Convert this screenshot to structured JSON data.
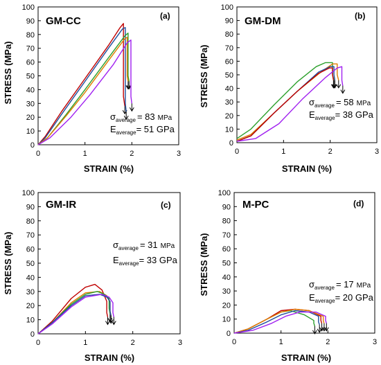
{
  "chart_data": [
    {
      "type": "line",
      "label": "GM-CC",
      "panel": "(a)",
      "xlabel": "STRAIN (%)",
      "ylabel": "STRESS (MPa)",
      "xlim": [
        0,
        3
      ],
      "ylim": [
        0,
        100
      ],
      "xticks": [
        0,
        1,
        2,
        3
      ],
      "yticks": [
        0,
        10,
        20,
        30,
        40,
        50,
        60,
        70,
        80,
        90,
        100
      ],
      "grid": false,
      "annotation": {
        "sigma_value": "= 83",
        "sigma_unit": "MPa",
        "e_value": "= 51 GPa"
      },
      "series": [
        {
          "color": "#c00000",
          "x": [
            0,
            0.15,
            0.5,
            1.0,
            1.5,
            1.75,
            1.82,
            1.82,
            1.85
          ],
          "y": [
            0,
            6,
            24,
            48,
            72,
            85,
            88,
            35,
            28
          ]
        },
        {
          "color": "#1f4e9c",
          "x": [
            0,
            0.15,
            0.5,
            1.0,
            1.5,
            1.8,
            1.86,
            1.86,
            1.88
          ],
          "y": [
            0,
            5,
            22,
            46,
            70,
            84,
            85,
            30,
            24
          ]
        },
        {
          "color": "#2ca02c",
          "x": [
            0,
            0.2,
            0.6,
            1.0,
            1.5,
            1.85,
            1.92,
            1.92,
            1.94
          ],
          "y": [
            0,
            5,
            22,
            40,
            63,
            79,
            81,
            50,
            46
          ]
        },
        {
          "color": "#e07b00",
          "x": [
            0,
            0.2,
            0.6,
            1.0,
            1.5,
            1.85,
            1.9,
            1.9,
            1.92
          ],
          "y": [
            0,
            5,
            21,
            38,
            61,
            77,
            78,
            50,
            46
          ]
        },
        {
          "color": "#a020f0",
          "x": [
            0,
            0.25,
            0.7,
            1.1,
            1.6,
            1.9,
            1.98,
            1.98,
            2.0
          ],
          "y": [
            0,
            5,
            20,
            36,
            58,
            74,
            76,
            35,
            30
          ]
        }
      ]
    },
    {
      "type": "line",
      "label": "GM-DM",
      "panel": "(b)",
      "xlabel": "STRAIN (%)",
      "ylabel": "STRESS (MPa)",
      "xlim": [
        0,
        3
      ],
      "ylim": [
        0,
        100
      ],
      "xticks": [
        0,
        1,
        2,
        3
      ],
      "yticks": [
        0,
        10,
        20,
        30,
        40,
        50,
        60,
        70,
        80,
        90,
        100
      ],
      "grid": false,
      "annotation": {
        "sigma_value": "= 58",
        "sigma_unit": "MPa",
        "e_value": "= 38 GPa"
      },
      "series": [
        {
          "color": "#2ca02c",
          "x": [
            0,
            0.3,
            0.8,
            1.3,
            1.7,
            1.9,
            2.05,
            2.05,
            2.08
          ],
          "y": [
            3,
            10,
            28,
            45,
            56,
            59,
            59,
            50,
            46
          ]
        },
        {
          "color": "#e07b00",
          "x": [
            0,
            0.3,
            0.8,
            1.3,
            1.8,
            2.05,
            2.15,
            2.15,
            2.18
          ],
          "y": [
            2,
            6,
            22,
            38,
            52,
            58,
            58,
            50,
            46
          ]
        },
        {
          "color": "#1f4e9c",
          "x": [
            0,
            0.3,
            0.8,
            1.3,
            1.75,
            2.0,
            2.08,
            2.08,
            2.1
          ],
          "y": [
            1,
            5,
            22,
            38,
            52,
            56,
            56,
            50,
            46
          ]
        },
        {
          "color": "#c00000",
          "x": [
            0,
            0.3,
            0.8,
            1.3,
            1.75,
            1.98,
            2.05,
            2.05,
            2.07
          ],
          "y": [
            1,
            5,
            22,
            38,
            51,
            55,
            55,
            50,
            46
          ]
        },
        {
          "color": "#a020f0",
          "x": [
            0,
            0.4,
            0.9,
            1.4,
            1.9,
            2.15,
            2.25,
            2.25,
            2.27
          ],
          "y": [
            1,
            3,
            14,
            32,
            48,
            55,
            56,
            46,
            42
          ]
        }
      ]
    },
    {
      "type": "line",
      "label": "GM-IR",
      "panel": "(c)",
      "xlabel": "STRAIN (%)",
      "ylabel": "STRESS (MPa)",
      "xlim": [
        0,
        3
      ],
      "ylim": [
        0,
        100
      ],
      "xticks": [
        0,
        1,
        2,
        3
      ],
      "yticks": [
        0,
        10,
        20,
        30,
        40,
        50,
        60,
        70,
        80,
        90,
        100
      ],
      "grid": false,
      "annotation": {
        "sigma_value": "= 31",
        "sigma_unit": "MPa",
        "e_value": "= 33 GPa"
      },
      "series": [
        {
          "color": "#c00000",
          "x": [
            0,
            0.3,
            0.7,
            1.0,
            1.2,
            1.35,
            1.45,
            1.45,
            1.47
          ],
          "y": [
            0,
            9,
            25,
            33,
            35,
            31,
            23,
            15,
            12
          ]
        },
        {
          "color": "#e07b00",
          "x": [
            0,
            0.3,
            0.7,
            1.0,
            1.3,
            1.45,
            1.52,
            1.52,
            1.54
          ],
          "y": [
            0,
            8,
            22,
            29,
            30,
            27,
            22,
            16,
            13
          ]
        },
        {
          "color": "#2ca02c",
          "x": [
            0,
            0.3,
            0.7,
            1.0,
            1.25,
            1.4,
            1.5,
            1.5,
            1.52
          ],
          "y": [
            0,
            8,
            21,
            28,
            30,
            28,
            25,
            18,
            14
          ]
        },
        {
          "color": "#1f4e9c",
          "x": [
            0,
            0.3,
            0.7,
            1.0,
            1.3,
            1.45,
            1.52,
            1.52,
            1.54
          ],
          "y": [
            0,
            8,
            20,
            27,
            28,
            26,
            23,
            16,
            13
          ]
        },
        {
          "color": "#a020f0",
          "x": [
            0,
            0.3,
            0.7,
            1.0,
            1.35,
            1.5,
            1.58,
            1.58,
            1.6
          ],
          "y": [
            0,
            7,
            19,
            26,
            28,
            26,
            22,
            15,
            12
          ]
        }
      ]
    },
    {
      "type": "line",
      "label": "M-PC",
      "panel": "(d)",
      "xlabel": "STRAIN (%)",
      "ylabel": "STRESS (MPa)",
      "xlim": [
        0,
        3
      ],
      "ylim": [
        0,
        100
      ],
      "xticks": [
        0,
        1,
        2,
        3
      ],
      "yticks": [
        0,
        10,
        20,
        30,
        40,
        50,
        60,
        70,
        80,
        90,
        100
      ],
      "grid": false,
      "annotation": {
        "sigma_value": "= 17",
        "sigma_unit": "MPa",
        "e_value": "= 20 GPa"
      },
      "series": [
        {
          "color": "#2ca02c",
          "x": [
            0,
            0.3,
            0.7,
            1.0,
            1.2,
            1.5,
            1.7,
            1.7,
            1.72
          ],
          "y": [
            0,
            3,
            10,
            15,
            16,
            13,
            9,
            7,
            5
          ]
        },
        {
          "color": "#c00000",
          "x": [
            0,
            0.3,
            0.7,
            1.0,
            1.3,
            1.6,
            1.85,
            1.85,
            1.87
          ],
          "y": [
            0,
            3,
            10,
            16,
            17,
            16,
            12,
            9,
            7
          ]
        },
        {
          "color": "#e07b00",
          "x": [
            0,
            0.3,
            0.7,
            1.0,
            1.3,
            1.6,
            1.9,
            1.9,
            1.92
          ],
          "y": [
            0,
            3,
            10,
            15,
            17,
            16,
            12,
            9,
            7
          ]
        },
        {
          "color": "#1f4e9c",
          "x": [
            0,
            0.3,
            0.7,
            1.0,
            1.3,
            1.6,
            1.8,
            1.8,
            1.82
          ],
          "y": [
            0,
            2,
            8,
            13,
            16,
            15,
            12,
            8,
            6
          ]
        },
        {
          "color": "#a020f0",
          "x": [
            0,
            0.4,
            0.8,
            1.1,
            1.4,
            1.75,
            1.95,
            1.95,
            1.97
          ],
          "y": [
            0,
            2,
            7,
            12,
            15,
            15,
            12,
            9,
            7
          ]
        }
      ]
    }
  ]
}
